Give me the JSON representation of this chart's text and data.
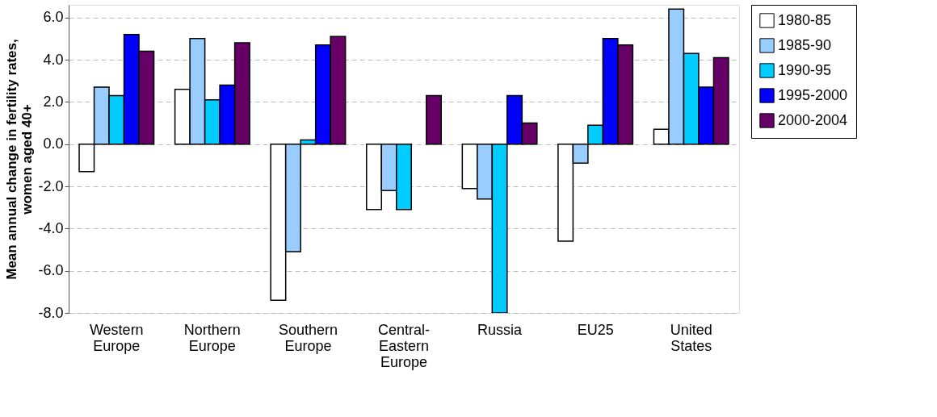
{
  "chart_data": {
    "type": "bar",
    "ylabel": "Mean annual change in fertility rates, women aged 40+",
    "categories": [
      "Western Europe",
      "Northern Europe",
      "Southern Europe",
      "Central-Eastern Europe",
      "Russia",
      "EU25",
      "United States"
    ],
    "series": [
      {
        "name": "1980-85",
        "color": "#ffffff",
        "values": [
          -1.3,
          2.6,
          -7.4,
          -3.1,
          -2.1,
          -4.6,
          0.7
        ]
      },
      {
        "name": "1985-90",
        "color": "#99ccff",
        "values": [
          2.7,
          5.0,
          -5.1,
          -2.2,
          -2.6,
          -0.9,
          6.4
        ]
      },
      {
        "name": "1990-95",
        "color": "#00ccff",
        "values": [
          2.3,
          2.1,
          0.2,
          -3.1,
          -8.0,
          0.9,
          4.3
        ]
      },
      {
        "name": "1995-2000",
        "color": "#0000ff",
        "values": [
          5.2,
          2.8,
          4.7,
          null,
          2.3,
          5.0,
          2.7
        ]
      },
      {
        "name": "2000-2004",
        "color": "#660066",
        "values": [
          4.4,
          4.8,
          5.1,
          2.3,
          1.0,
          4.7,
          4.1
        ]
      }
    ],
    "ylim": [
      -8,
      6.6
    ],
    "yticks": [
      {
        "value": -8,
        "label": "-8.0"
      },
      {
        "value": -6,
        "label": "-6.0"
      },
      {
        "value": -4,
        "label": "-4.0"
      },
      {
        "value": -2,
        "label": "-2.0"
      },
      {
        "value": 0,
        "label": "0.0"
      },
      {
        "value": 2,
        "label": "2.0"
      },
      {
        "value": 4,
        "label": "4.0"
      },
      {
        "value": 6,
        "label": "6.0"
      }
    ],
    "grid": "y",
    "legend": "right"
  }
}
